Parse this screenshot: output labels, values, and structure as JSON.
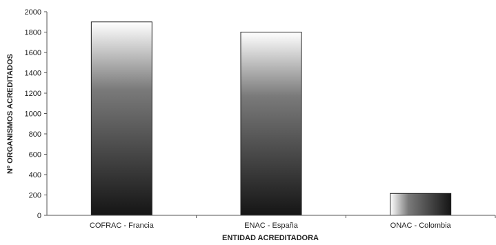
{
  "chart_data": {
    "type": "bar",
    "categories": [
      "COFRAC - Francia",
      "ENAC - España",
      "ONAC - Colombia"
    ],
    "values": [
      1900,
      1800,
      215
    ],
    "title": "",
    "xlabel": "ENTIDAD ACREDITADORA",
    "ylabel": "Nº ORGANISMOS ACREDITADOS",
    "ylim": [
      0,
      2000
    ],
    "yticks": [
      0,
      200,
      400,
      600,
      800,
      1000,
      1200,
      1400,
      1600,
      1800,
      2000
    ],
    "grid": false,
    "legend": "none",
    "colors": {
      "bar_light": "#ffffff",
      "bar_mid": "#7a7a7a",
      "bar_dark": "#151515",
      "bar_border": "#222222",
      "axis": "#555555"
    }
  }
}
